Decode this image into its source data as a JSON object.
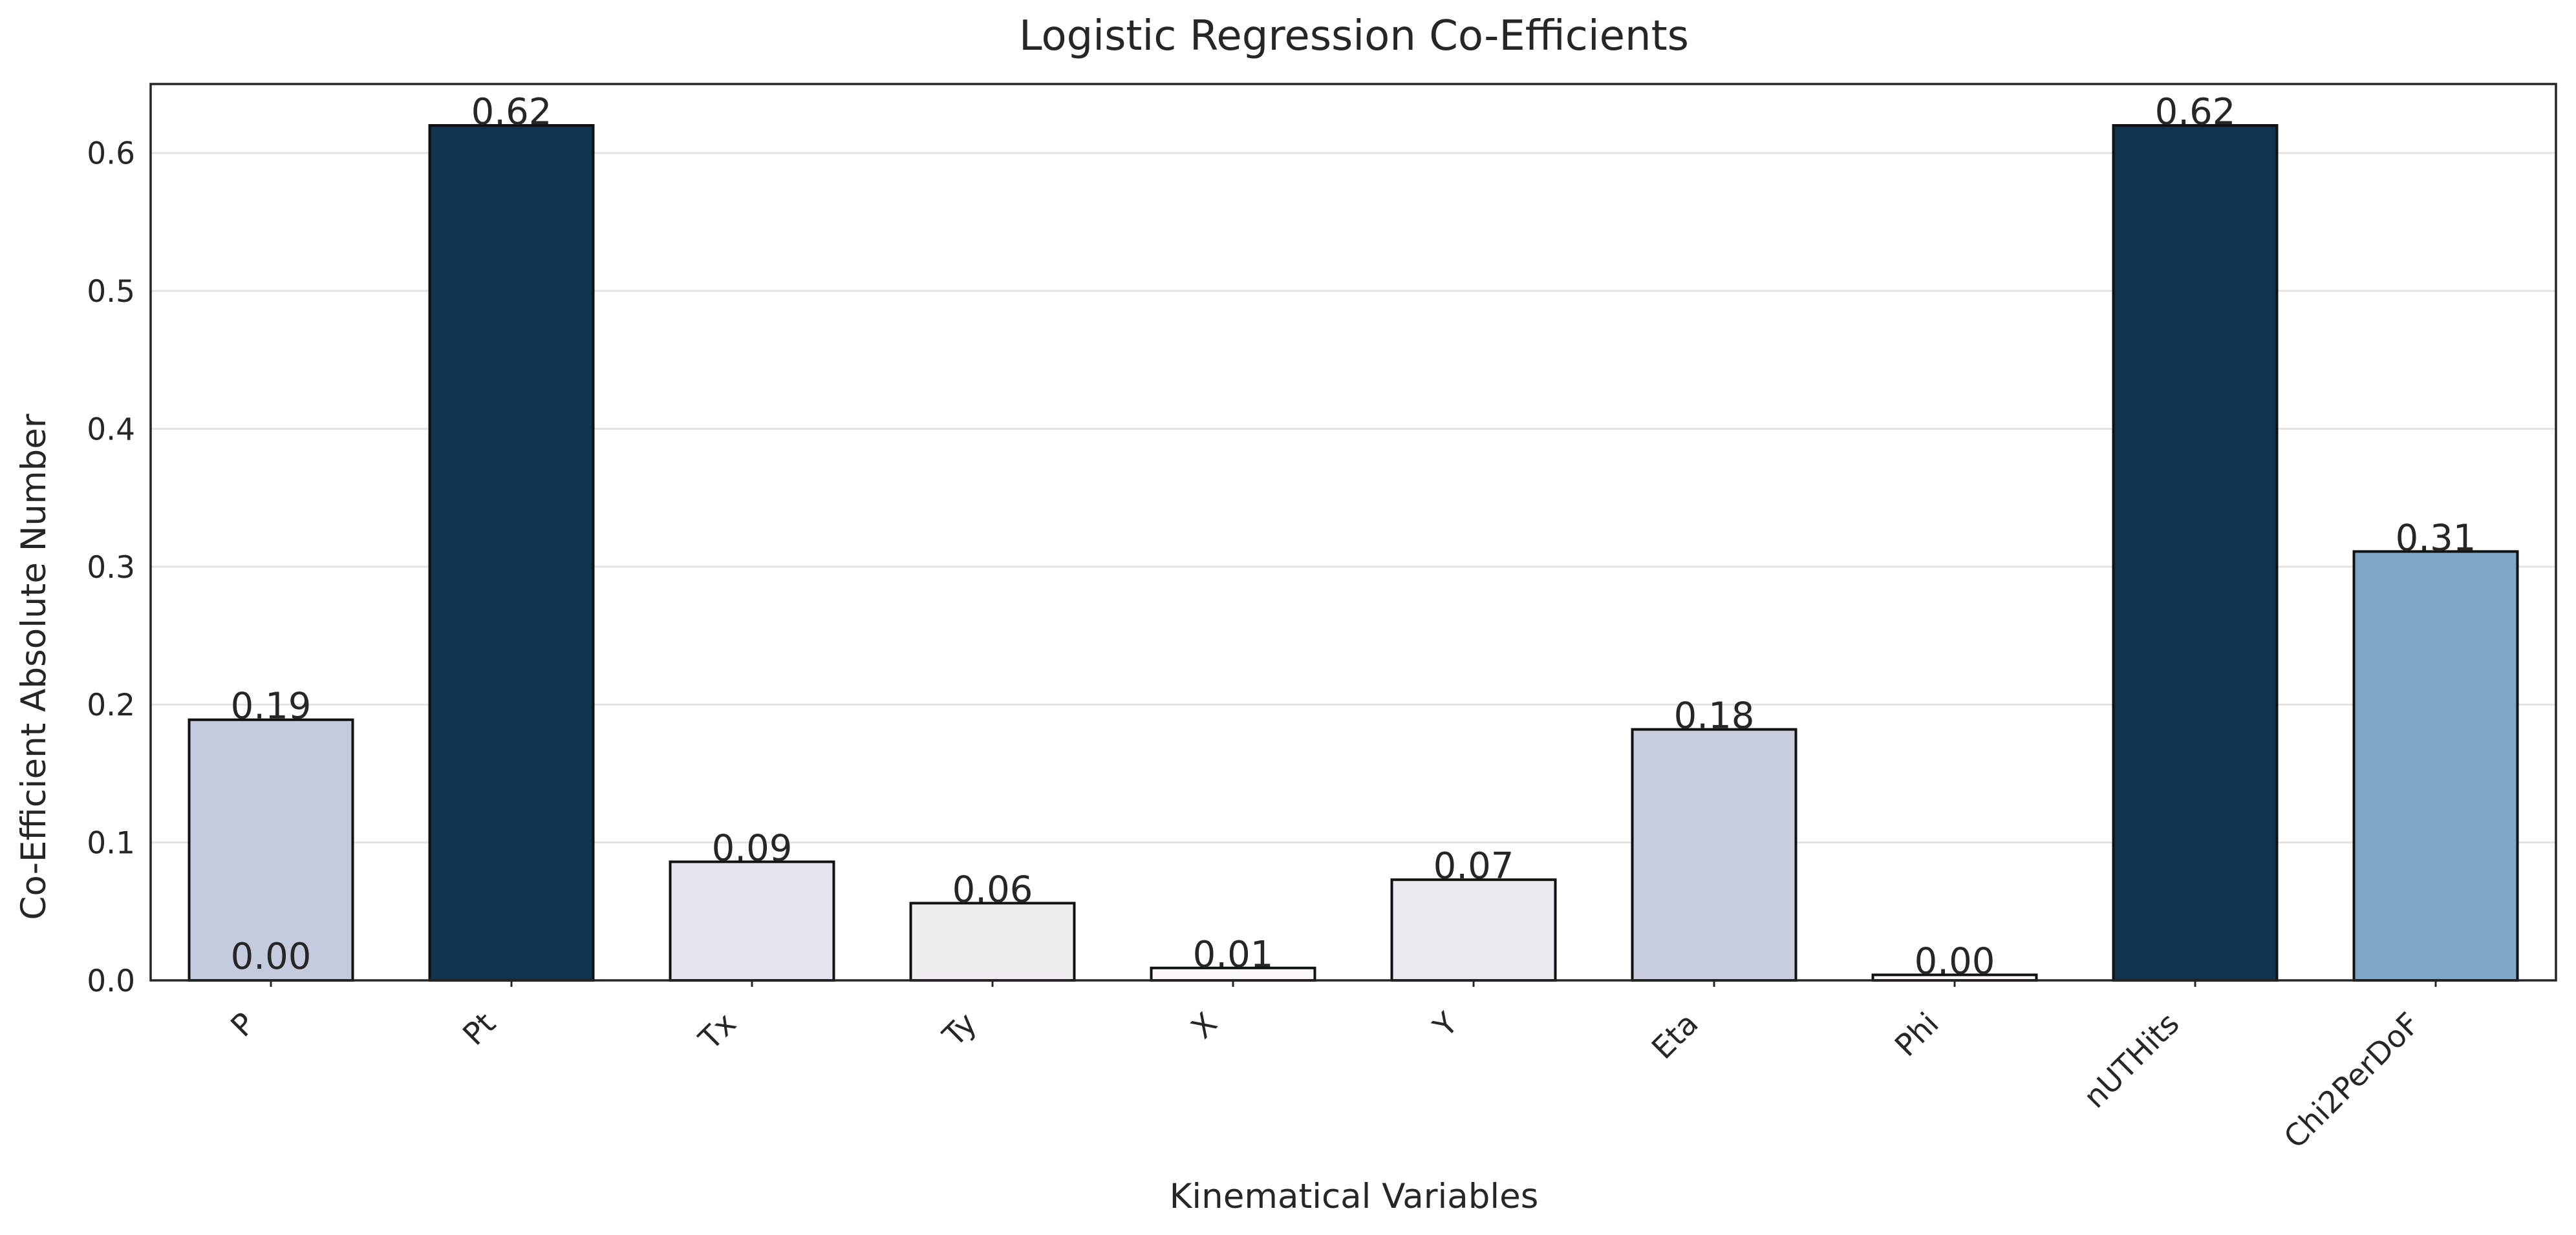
{
  "chart_data": {
    "type": "bar",
    "title": "Logistic Regression Co-Efficients",
    "xlabel": "Kinematical Variables",
    "ylabel": "Co-Efficient Absolute Number",
    "categories": [
      "P",
      "Pt",
      "Tx",
      "Ty",
      "X",
      "Y",
      "Eta",
      "Phi",
      "nUTHits",
      "Chi2PerDoF"
    ],
    "values": [
      0.189,
      0.62,
      0.086,
      0.056,
      0.009,
      0.073,
      0.182,
      0.004,
      0.62,
      0.311
    ],
    "value_labels": [
      "0.19",
      "0.62",
      "0.09",
      "0.06",
      "0.01",
      "0.07",
      "0.18",
      "0.00",
      "0.62",
      "0.31"
    ],
    "extra_labels": [
      {
        "category": "P",
        "text": "0.00"
      }
    ],
    "bar_colors": [
      "#c5cbdf",
      "#10344d",
      "#e7e4f0",
      "#f0ecf2",
      "#fbf7fb",
      "#ebe8f0",
      "#c9cedf",
      "#fdf9fc",
      "#10344d",
      "#80a8c6"
    ],
    "ylim": [
      0,
      0.65
    ],
    "yticks": [
      0.0,
      0.1,
      0.2,
      0.3,
      0.4,
      0.5,
      0.6
    ],
    "ytick_labels": [
      "0.0",
      "0.1",
      "0.2",
      "0.3",
      "0.4",
      "0.5",
      "0.6"
    ],
    "grid": true,
    "xtick_rotation": 45
  }
}
